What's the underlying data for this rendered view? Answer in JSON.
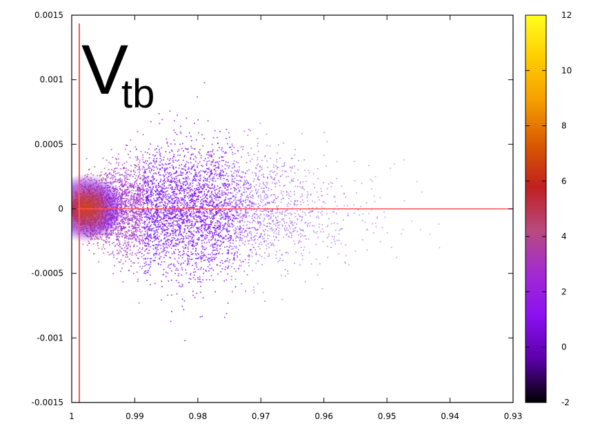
{
  "chart_data": {
    "type": "scatter",
    "title": "V",
    "title_subscript": "tb",
    "xlabel": "",
    "ylabel": "",
    "x_reversed": true,
    "xlim": [
      1,
      0.93
    ],
    "ylim": [
      -0.0015,
      0.0015
    ],
    "x_ticks": [
      1,
      0.99,
      0.98,
      0.97,
      0.96,
      0.95,
      0.94,
      0.93
    ],
    "x_tick_labels": [
      "1",
      "0.99",
      "0.98",
      "0.97",
      "0.96",
      "0.95",
      "0.94",
      "0.93"
    ],
    "y_ticks": [
      0.0015,
      0.001,
      0.0005,
      0,
      -0.0005,
      -0.001,
      -0.0015
    ],
    "y_tick_labels": [
      "0.0015",
      "0.001",
      "0.0005",
      "0",
      "-0.0005",
      "-0.001",
      "-0.0015"
    ],
    "colorbar": {
      "range": [
        -2,
        12
      ],
      "ticks": [
        12,
        10,
        8,
        6,
        4,
        2,
        0,
        -2
      ],
      "tick_labels": [
        "12",
        "10",
        "8",
        "6",
        "4",
        "2",
        "0",
        "-2"
      ],
      "colormap": [
        "#000000",
        "#5a00a8",
        "#8b10f0",
        "#a32ad2",
        "#b84a80",
        "#c02020",
        "#d95a00",
        "#f59e00",
        "#ffcc00",
        "#ffff20"
      ]
    },
    "reference_lines": [
      {
        "orientation": "vertical",
        "x": 0.9988,
        "color": "#ff5050"
      },
      {
        "orientation": "horizontal",
        "y": 0,
        "color": "#ff5050"
      }
    ],
    "scatter_distribution": {
      "description_units": "data",
      "apex_x": 1.0,
      "points": 6500,
      "extends_to_x": 0.937,
      "y_spread_max": 0.00055
    },
    "grid": false
  }
}
